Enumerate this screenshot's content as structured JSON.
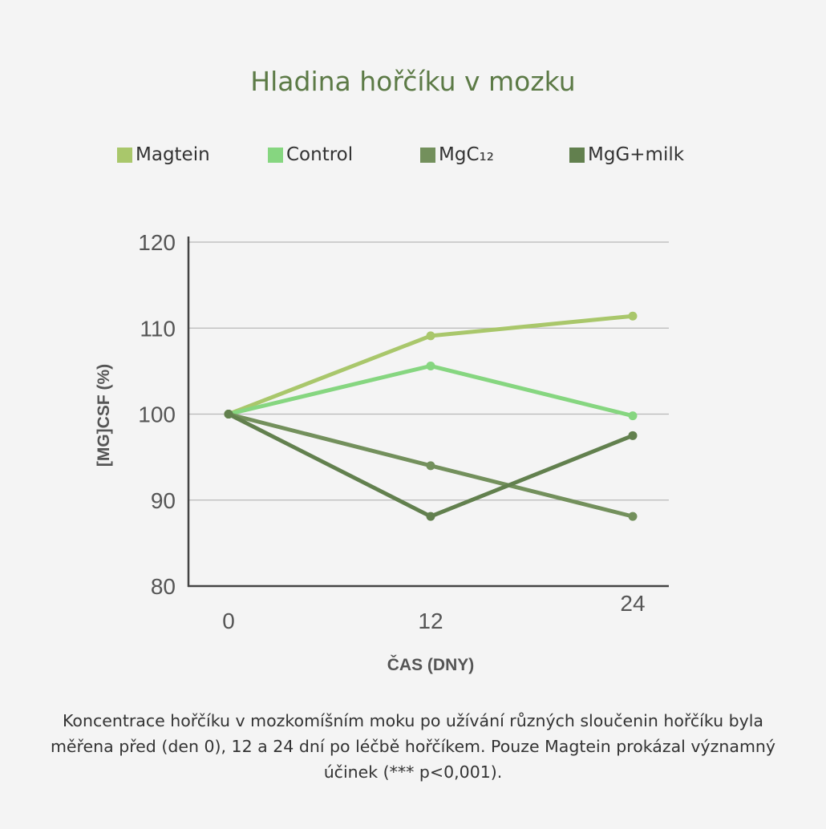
{
  "chart_data": {
    "type": "line",
    "title": "Hladina hořčíku v mozku",
    "xlabel": "ČAS (DNY)",
    "ylabel": "[MG]CSF (%)",
    "x": [
      0,
      12,
      24
    ],
    "x_tick_labels": [
      "0",
      "12",
      "24"
    ],
    "y_ticks": [
      80,
      90,
      100,
      110,
      120
    ],
    "ylim": [
      80,
      120
    ],
    "grid": true,
    "legend_position": "top",
    "series": [
      {
        "name": "Magtein",
        "color": "#a9c76b",
        "values": [
          100,
          109.1,
          111.4
        ]
      },
      {
        "name": "Control",
        "color": "#86d680",
        "values": [
          100,
          105.6,
          99.8
        ]
      },
      {
        "name": "MgC₁₂",
        "color": "#73905c",
        "values": [
          100,
          94,
          88.1
        ]
      },
      {
        "name": "MgG+milk",
        "color": "#62804e",
        "values": [
          100,
          88.1,
          97.5
        ]
      }
    ]
  },
  "caption": "Koncentrace hořčíku v mozkomíšním moku po užívání různých sloučenin hořčíku byla měřena před (den 0), 12 a 24 dní po léčbě hořčíkem. Pouze Magtein prokázal významný účinek (*** p<0,001)."
}
